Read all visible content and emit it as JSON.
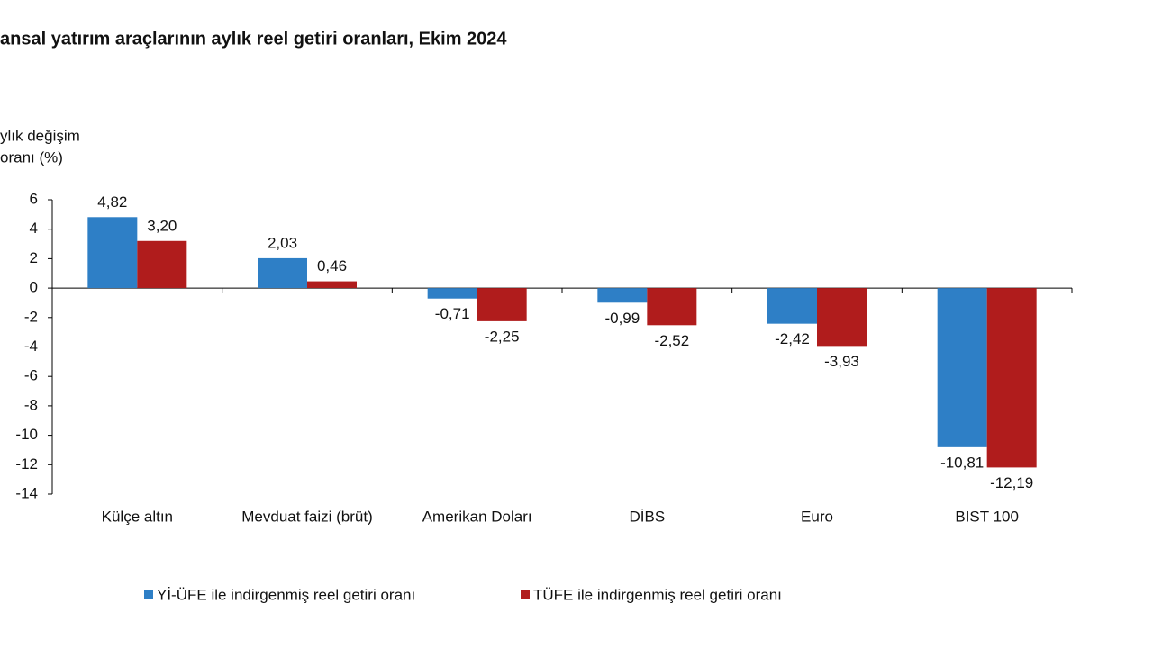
{
  "chart_data": {
    "type": "bar",
    "title": "ansal yatırım araçlarının aylık reel getiri oranları, Ekim 2024",
    "y_label": [
      "ylık değişim",
      "oranı (%)"
    ],
    "categories": [
      "Külçe altın",
      "Mevduat faizi (brüt)",
      "Amerikan Doları",
      "DİBS",
      "Euro",
      "BIST 100"
    ],
    "series": [
      {
        "name": "Yİ-ÜFE ile indirgenmiş reel getiri oranı",
        "color": "#2e7fc6",
        "values": [
          4.82,
          2.03,
          -0.71,
          -0.99,
          -2.42,
          -10.81
        ],
        "value_labels": [
          "4,82",
          "2,03",
          "-0,71",
          "-0,99",
          "-2,42",
          "-10,81"
        ]
      },
      {
        "name": "TÜFE ile indirgenmiş reel getiri oranı",
        "color": "#b01c1c",
        "values": [
          3.2,
          0.46,
          -2.25,
          -2.52,
          -3.93,
          -12.19
        ],
        "value_labels": [
          "3,20",
          "0,46",
          "-2,25",
          "-2,52",
          "-3,93",
          "-12,19"
        ]
      }
    ],
    "ylim": [
      -14,
      6
    ],
    "yticks": [
      6,
      4,
      2,
      0,
      -2,
      -4,
      -6,
      -8,
      -10,
      -12,
      -14
    ],
    "legend": "bottom"
  }
}
